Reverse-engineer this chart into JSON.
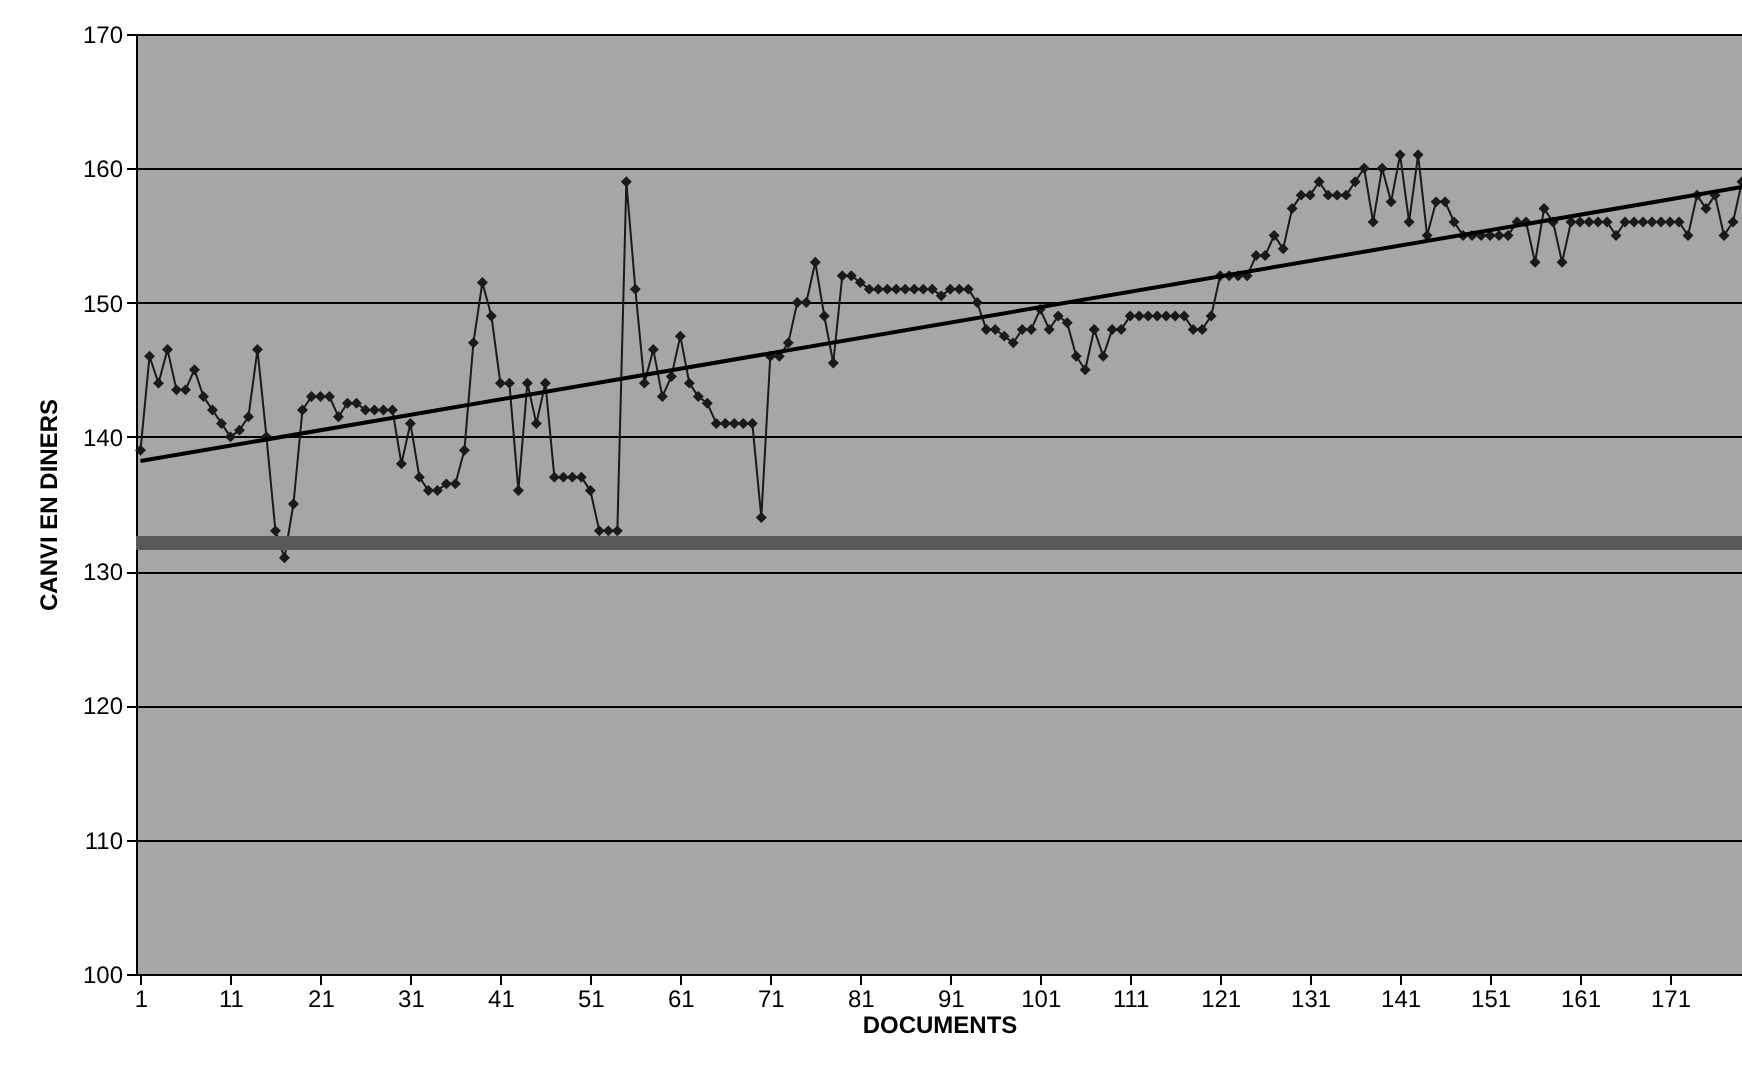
{
  "chart_data": {
    "type": "line",
    "xlabel": "DOCUMENTS",
    "ylabel": "CANVI EN DINERS",
    "ylim": [
      100,
      170
    ],
    "yticks": [
      100,
      110,
      120,
      130,
      140,
      150,
      160,
      170
    ],
    "xlim": [
      0.5,
      179
    ],
    "xticks": [
      1,
      11,
      21,
      31,
      41,
      51,
      61,
      71,
      81,
      91,
      101,
      111,
      121,
      131,
      141,
      151,
      161,
      171
    ],
    "grid": "y",
    "marker": "diamond",
    "line_style": "solid",
    "x": [
      1,
      2,
      3,
      4,
      5,
      6,
      7,
      8,
      9,
      10,
      11,
      12,
      13,
      14,
      15,
      16,
      17,
      18,
      19,
      20,
      21,
      22,
      23,
      24,
      25,
      26,
      27,
      28,
      29,
      30,
      31,
      32,
      33,
      34,
      35,
      36,
      37,
      38,
      39,
      40,
      41,
      42,
      43,
      44,
      45,
      46,
      47,
      48,
      49,
      50,
      51,
      52,
      53,
      54,
      55,
      56,
      57,
      58,
      59,
      60,
      61,
      62,
      63,
      64,
      65,
      66,
      67,
      68,
      69,
      70,
      71,
      72,
      73,
      74,
      75,
      76,
      77,
      78,
      79,
      80,
      81,
      82,
      83,
      84,
      85,
      86,
      87,
      88,
      89,
      90,
      91,
      92,
      93,
      94,
      95,
      96,
      97,
      98,
      99,
      100,
      101,
      102,
      103,
      104,
      105,
      106,
      107,
      108,
      109,
      110,
      111,
      112,
      113,
      114,
      115,
      116,
      117,
      118,
      119,
      120,
      121,
      122,
      123,
      124,
      125,
      126,
      127,
      128,
      129,
      130,
      131,
      132,
      133,
      134,
      135,
      136,
      137,
      138,
      139,
      140,
      141,
      142,
      143,
      144,
      145,
      146,
      147,
      148,
      149,
      150,
      151,
      152,
      153,
      154,
      155,
      156,
      157,
      158,
      159,
      160,
      161,
      162,
      163,
      164,
      165,
      166,
      167,
      168,
      169,
      170,
      171,
      172,
      173,
      174,
      175,
      176,
      177,
      178,
      179
    ],
    "series": [
      {
        "color": "#1a1a1a",
        "values": [
          139,
          146,
          144,
          146.5,
          143.5,
          143.5,
          145,
          143,
          142,
          141,
          140,
          140.5,
          141.5,
          146.5,
          140,
          133,
          131,
          135,
          142,
          143,
          143,
          143,
          141.5,
          142.5,
          142.5,
          142,
          142,
          142,
          142,
          138,
          141,
          137,
          136,
          136,
          136.5,
          136.5,
          139,
          147,
          151.5,
          149,
          144,
          144,
          136,
          144,
          141,
          144,
          137,
          137,
          137,
          137,
          136,
          133,
          133,
          133,
          159,
          151,
          144,
          146.5,
          143,
          144.5,
          147.5,
          144,
          143,
          142.5,
          141,
          141,
          141,
          141,
          141,
          134,
          146,
          146,
          147,
          150,
          150,
          153,
          149,
          145.5,
          152,
          152,
          151.5,
          151,
          151,
          151,
          151,
          151,
          151,
          151,
          151,
          150.5,
          151,
          151,
          151,
          150,
          148,
          148,
          147.5,
          147,
          148,
          148,
          149.5,
          148,
          149,
          148.5,
          146,
          145,
          148,
          146,
          148,
          148,
          149,
          149,
          149,
          149,
          149,
          149,
          149,
          148,
          148,
          149,
          152,
          152,
          152,
          152,
          153.5,
          153.5,
          155,
          154,
          157,
          158,
          158,
          159,
          158,
          158,
          158,
          159,
          160,
          156,
          160,
          157.5,
          161,
          156,
          161,
          155,
          157.5,
          157.5,
          156,
          155,
          155,
          155,
          155,
          155,
          155,
          156,
          156,
          153,
          157,
          156,
          153,
          156,
          156,
          156,
          156,
          156,
          155,
          156,
          156,
          156,
          156,
          156,
          156,
          156,
          155,
          158,
          157,
          158,
          155,
          156,
          159
        ]
      },
      {
        "type": "line",
        "color": "#000000",
        "marker": "none",
        "x": [
          1,
          179
        ],
        "values": [
          138.2,
          158.6
        ]
      }
    ],
    "ref_lines": [
      {
        "axis": "y",
        "value": 132.1,
        "color": "#595959"
      }
    ]
  }
}
